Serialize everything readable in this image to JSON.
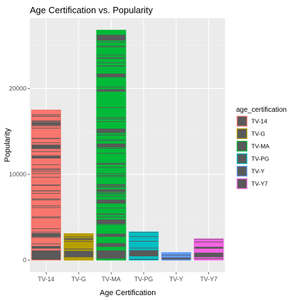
{
  "chart_data": {
    "type": "bar",
    "title": "Age Certification vs. Popularity",
    "xlabel": "Age Certification",
    "ylabel": "Popularity",
    "categories": [
      "TV-14",
      "TV-G",
      "TV-MA",
      "TV-PG",
      "TV-Y",
      "TV-Y7"
    ],
    "values": [
      17500,
      3100,
      26800,
      3300,
      900,
      2500
    ],
    "ylim": [
      -1400,
      28200
    ],
    "yticks": [
      0,
      10000,
      20000
    ],
    "grid": true,
    "legend": {
      "title": "age_certification",
      "placement": "right",
      "items": [
        "TV-14",
        "TV-G",
        "TV-MA",
        "TV-PG",
        "TV-Y",
        "TV-Y7"
      ]
    },
    "colors": {
      "TV-14": "#F8766D",
      "TV-G": "#B79F00",
      "TV-MA": "#00BA38",
      "TV-PG": "#00BFC4",
      "TV-Y": "#619CFF",
      "TV-Y7": "#F564E3"
    },
    "panel_background": "#EBEBEB",
    "stack_fill": "#595959"
  }
}
